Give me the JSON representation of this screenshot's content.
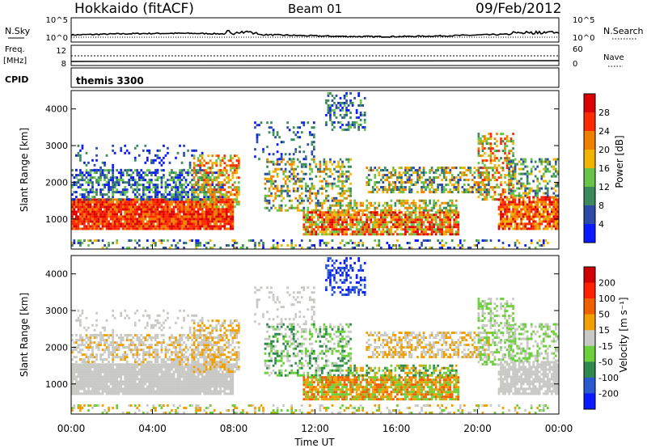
{
  "header": {
    "station": "Hokkaido (fitACF)",
    "beam": "Beam 01",
    "date": "09/Feb/2012"
  },
  "aux_panels": {
    "nsky_label": "N.Sky",
    "nsearch_label": "N.Search",
    "nsky_ticks": [
      "10^5",
      "10^0"
    ],
    "freq_label_1": "Freq.",
    "freq_label_2": "[MHz]",
    "freq_ticks": [
      "12",
      "8"
    ],
    "nave_label": "Nave",
    "nave_ticks": [
      "60",
      "0"
    ],
    "cpid_label": "CPID",
    "cpid_value": "themis 3300"
  },
  "chart_data": [
    {
      "type": "heatmap",
      "panel": "power",
      "ylabel": "Slant Range [km]",
      "ylim": [
        180,
        4500
      ],
      "yticks": [
        1000,
        2000,
        3000,
        4000
      ],
      "xlim": [
        0,
        24
      ],
      "colorbar_label": "Power [dB]",
      "colorbar_ticks": [
        "4",
        "8",
        "12",
        "16",
        "20",
        "24",
        "28"
      ],
      "colors": [
        "#0a1aff",
        "#2c4aa8",
        "#3b8a5c",
        "#66c44a",
        "#f2b400",
        "#f08000",
        "#ff2a00",
        "#dd0000"
      ]
    },
    {
      "type": "heatmap",
      "panel": "velocity",
      "ylabel": "Slant Range [km]",
      "ylim": [
        180,
        4500
      ],
      "yticks": [
        1000,
        2000,
        3000,
        4000
      ],
      "xlim": [
        0,
        24
      ],
      "xlabel": "Time UT",
      "xticks": [
        "00:00",
        "04:00",
        "08:00",
        "12:00",
        "16:00",
        "20:00",
        "00:00"
      ],
      "colorbar_label": "Velocity [m s⁻¹]",
      "colorbar_ticks": [
        "200",
        "100",
        "50",
        "15",
        "-15",
        "-50",
        "-100",
        "-200"
      ],
      "colors": [
        "#0a1aff",
        "#2a5ad0",
        "#2e8a4c",
        "#6cd03a",
        "#c8c8c4",
        "#f2a000",
        "#f06000",
        "#ff2000",
        "#d00000"
      ]
    }
  ]
}
